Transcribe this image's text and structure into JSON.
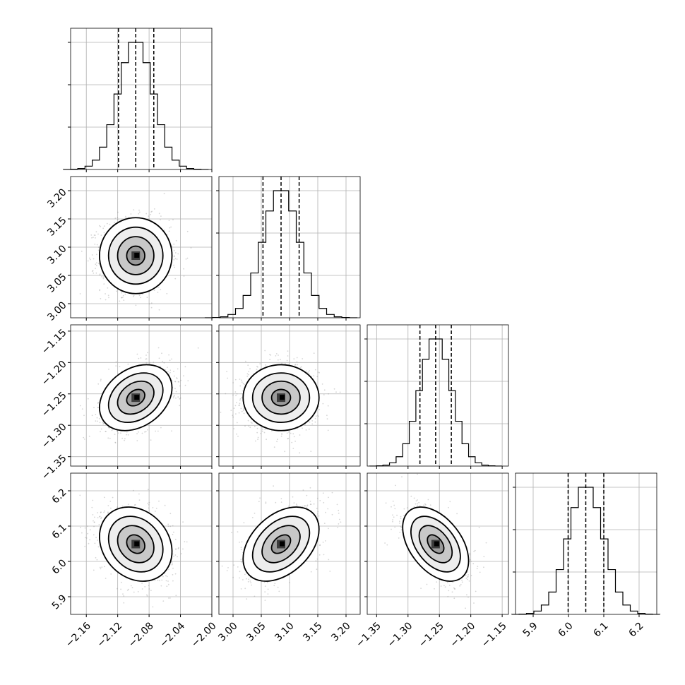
{
  "chart_data": {
    "type": "corner",
    "grid": true,
    "parameters": [
      {
        "range": [
          -2.18,
          -2.0
        ],
        "ticks": [
          -2.16,
          -2.12,
          -2.08,
          -2.04,
          -2.0
        ],
        "tick_labels": [
          "−2.16",
          "−2.12",
          "−2.08",
          "−2.04",
          "−2.00"
        ],
        "quantiles": [
          -2.119,
          -2.097,
          -2.074
        ],
        "center": -2.097,
        "sigma": 0.022
      },
      {
        "range": [
          2.975,
          3.225
        ],
        "ticks": [
          3.0,
          3.05,
          3.1,
          3.15,
          3.2
        ],
        "tick_labels": [
          "3.00",
          "3.05",
          "3.10",
          "3.15",
          "3.20"
        ],
        "quantiles": [
          3.053,
          3.085,
          3.117
        ],
        "center": 3.085,
        "sigma": 0.032
      },
      {
        "range": [
          -1.365,
          -1.14
        ],
        "ticks": [
          -1.35,
          -1.3,
          -1.25,
          -1.2,
          -1.15
        ],
        "tick_labels": [
          "−1.35",
          "−1.30",
          "−1.25",
          "−1.20",
          "−1.15"
        ],
        "quantiles": [
          -1.281,
          -1.256,
          -1.231
        ],
        "center": -1.256,
        "sigma": 0.025
      },
      {
        "range": [
          5.85,
          6.25
        ],
        "ticks": [
          5.9,
          6.0,
          6.1,
          6.2
        ],
        "tick_labels": [
          "5.9",
          "6.0",
          "6.1",
          "6.2"
        ],
        "quantiles": [
          5.999,
          6.049,
          6.1
        ],
        "center": 6.049,
        "sigma": 0.05
      }
    ],
    "correlations": [
      {
        "pair": [
          0,
          1
        ],
        "rho": 0.0
      },
      {
        "pair": [
          0,
          2
        ],
        "rho": 0.3
      },
      {
        "pair": [
          1,
          2
        ],
        "rho": 0.0
      },
      {
        "pair": [
          0,
          3
        ],
        "rho": -0.2
      },
      {
        "pair": [
          1,
          3
        ],
        "rho": 0.4
      },
      {
        "pair": [
          2,
          3
        ],
        "rho": -0.45
      }
    ],
    "contour_levels_sigma": [
      0.5,
      1.0,
      1.5,
      2.0
    ],
    "histogram_bins": 20
  }
}
